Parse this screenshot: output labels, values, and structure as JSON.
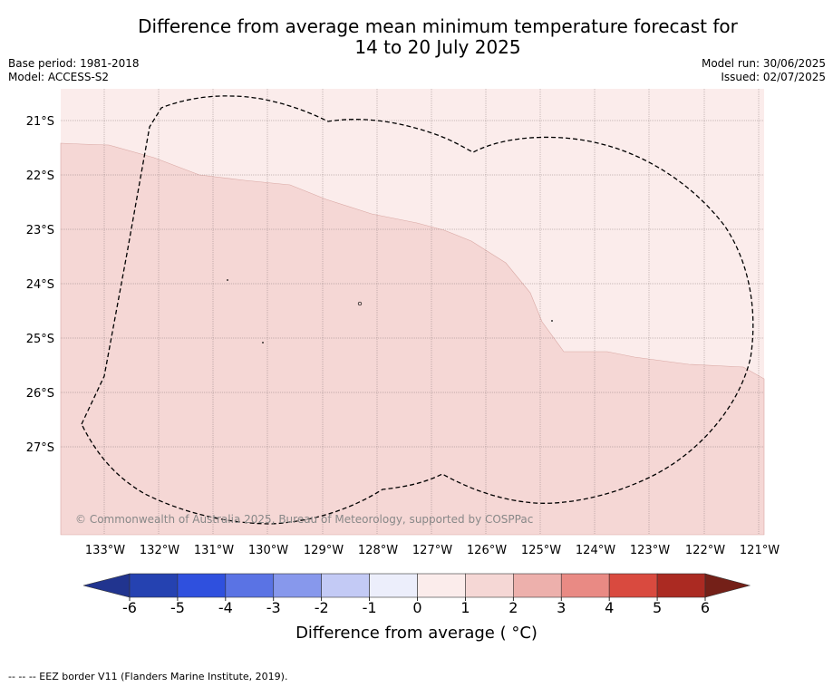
{
  "title": {
    "line1": "Difference from average mean minimum temperature forecast for",
    "line2": "14 to 20 July 2025"
  },
  "meta_left": {
    "base_period": "Base period: 1981-2018",
    "model": "Model: ACCESS-S2"
  },
  "meta_right": {
    "model_run": "Model run: 30/06/2025",
    "issued": "Issued: 02/07/2025"
  },
  "map": {
    "lat_labels": [
      "21°S",
      "22°S",
      "23°S",
      "24°S",
      "25°S",
      "26°S",
      "27°S"
    ],
    "lon_labels": [
      "133°W",
      "132°W",
      "131°W",
      "130°W",
      "129°W",
      "128°W",
      "127°W",
      "126°W",
      "125°W",
      "124°W",
      "123°W",
      "122°W",
      "121°W"
    ],
    "copyright": "© Commonwealth of Australia 2025, Bureau of Meteorology, supported by COSPPac",
    "region_values": {
      "north_region": "0 to 1",
      "south_region": "1 to 2"
    }
  },
  "colorbar": {
    "ticks": [
      "-6",
      "-5",
      "-4",
      "-3",
      "-2",
      "-1",
      "0",
      "1",
      "2",
      "3",
      "4",
      "5",
      "6"
    ],
    "colors": [
      "#21348f",
      "#2542b1",
      "#2f50de",
      "#5a73e4",
      "#8798ec",
      "#c3caf5",
      "#eceefb",
      "#fbeceb",
      "#f5d7d5",
      "#edb0ac",
      "#e98a84",
      "#d94a3f",
      "#ab2a22",
      "#742018"
    ],
    "label": "Difference from average ( °C)"
  },
  "footer": {
    "eez_note": "--  --  -- EEZ border V11 (Flanders Marine Institute, 2019)."
  }
}
